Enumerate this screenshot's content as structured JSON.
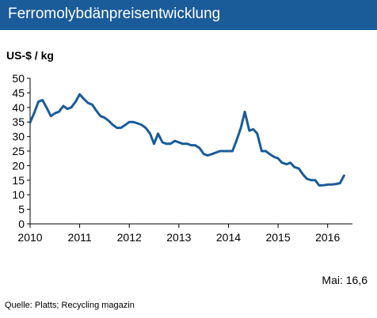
{
  "header": {
    "title": "Ferromolybdänpreisentwicklung"
  },
  "chart_data": {
    "type": "line",
    "title": "Ferromolybdänpreisentwicklung",
    "ylabel": "US-$ / kg",
    "xlabel": "",
    "xlim": [
      2010,
      2016.5
    ],
    "ylim": [
      0,
      50
    ],
    "x_ticks": [
      2010,
      2011,
      2012,
      2013,
      2014,
      2015,
      2016
    ],
    "x_tick_labels": [
      "2010",
      "2011",
      "2012",
      "2013",
      "2014",
      "2015",
      "2016"
    ],
    "y_ticks": [
      0,
      5,
      10,
      15,
      20,
      25,
      30,
      35,
      40,
      45,
      50
    ],
    "y_tick_labels": [
      "0",
      "5",
      "10",
      "15",
      "20",
      "25",
      "30",
      "35",
      "40",
      "45",
      "50"
    ],
    "grid": false,
    "color": "#1a5b9a",
    "series": [
      {
        "x": [
          2010.0,
          2010.08,
          2010.17,
          2010.25,
          2010.33,
          2010.42,
          2010.5,
          2010.58,
          2010.67,
          2010.75,
          2010.83,
          2010.92,
          2011.0,
          2011.08,
          2011.17,
          2011.25,
          2011.33,
          2011.42,
          2011.5,
          2011.58,
          2011.67,
          2011.75,
          2011.83,
          2011.92,
          2012.0,
          2012.08,
          2012.17,
          2012.25,
          2012.33,
          2012.42,
          2012.5,
          2012.58,
          2012.67,
          2012.75,
          2012.83,
          2012.92,
          2013.0,
          2013.08,
          2013.17,
          2013.25,
          2013.33,
          2013.42,
          2013.5,
          2013.58,
          2013.67,
          2013.75,
          2013.83,
          2013.92,
          2014.0,
          2014.08,
          2014.17,
          2014.25,
          2014.33,
          2014.42,
          2014.5,
          2014.58,
          2014.67,
          2014.75,
          2014.83,
          2014.92,
          2015.0,
          2015.08,
          2015.17,
          2015.25,
          2015.33,
          2015.42,
          2015.5,
          2015.58,
          2015.67,
          2015.75,
          2015.83,
          2015.92,
          2016.0,
          2016.08,
          2016.17,
          2016.25,
          2016.33
        ],
        "y": [
          34.8,
          38.0,
          42.0,
          42.5,
          40.0,
          37.0,
          38.0,
          38.5,
          40.5,
          39.5,
          40.0,
          42.0,
          44.5,
          43.0,
          41.5,
          41.0,
          39.0,
          37.0,
          36.5,
          35.5,
          34.0,
          33.0,
          33.0,
          34.0,
          35.0,
          35.0,
          34.5,
          34.0,
          33.0,
          31.0,
          27.5,
          31.0,
          28.0,
          27.5,
          27.5,
          28.5,
          28.0,
          27.5,
          27.5,
          27.0,
          27.0,
          26.0,
          24.0,
          23.5,
          24.0,
          24.5,
          25.0,
          25.0,
          25.0,
          25.0,
          29.0,
          33.0,
          38.5,
          32.0,
          32.5,
          31.0,
          25.0,
          25.0,
          24.0,
          23.0,
          22.5,
          21.0,
          20.5,
          21.0,
          19.5,
          19.0,
          17.0,
          15.5,
          15.0,
          15.0,
          13.2,
          13.3,
          13.5,
          13.5,
          13.7,
          14.0,
          16.6
        ]
      }
    ]
  },
  "footer": {
    "note": "Mai: 16,6",
    "source": "Quelle: Platts; Recycling magazin"
  }
}
